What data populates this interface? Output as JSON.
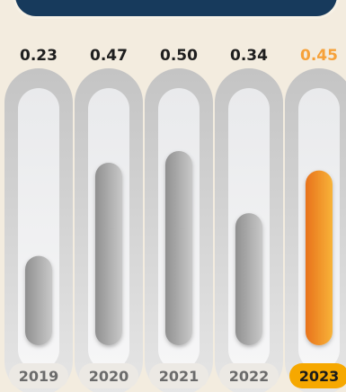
{
  "chart_data": {
    "type": "bar",
    "categories": [
      "2019",
      "2020",
      "2021",
      "2022",
      "2023"
    ],
    "values": [
      0.23,
      0.47,
      0.5,
      0.34,
      0.45
    ],
    "value_labels": [
      "0.23",
      "0.47",
      "0.50",
      "0.34",
      "0.45"
    ],
    "highlight_index": 4,
    "ylim": [
      0,
      0.5
    ],
    "title": "",
    "xlabel": "",
    "ylabel": "",
    "grid": false,
    "legend": "none"
  },
  "colors": {
    "background": "#f3ecdf",
    "banner": "#173a5c",
    "highlight_text": "#f6a13a",
    "highlight_pill": "#f6a800",
    "bar_gray_dark": "#8e8e8e",
    "bar_gray_light": "#c4c4c4",
    "bar_orange_dark": "#e8721c",
    "bar_orange_light": "#f7b23a"
  }
}
